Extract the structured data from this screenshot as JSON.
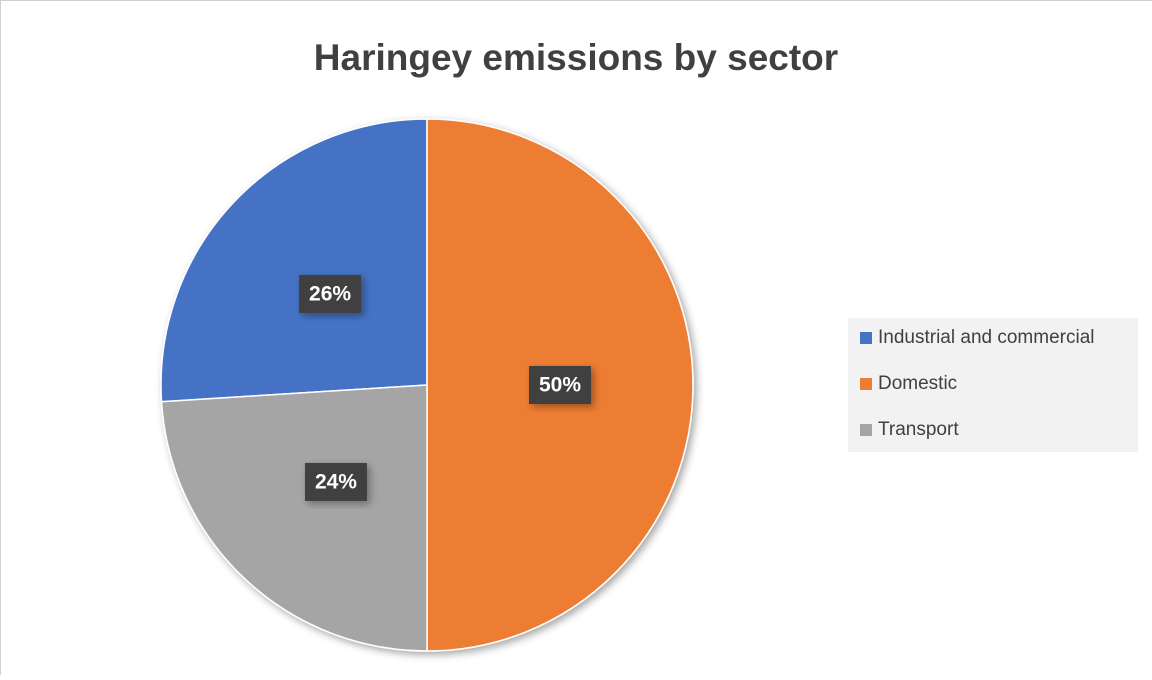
{
  "chart_data": {
    "type": "pie",
    "title": "Haringey emissions by sector",
    "categories": [
      "Industrial and commercial",
      "Domestic",
      "Transport"
    ],
    "values": [
      26,
      50,
      24
    ],
    "value_labels": [
      "26%",
      "50%",
      "24%"
    ],
    "colors": [
      "#4472c4",
      "#ed7d31",
      "#a5a5a5"
    ],
    "legend": "right"
  }
}
